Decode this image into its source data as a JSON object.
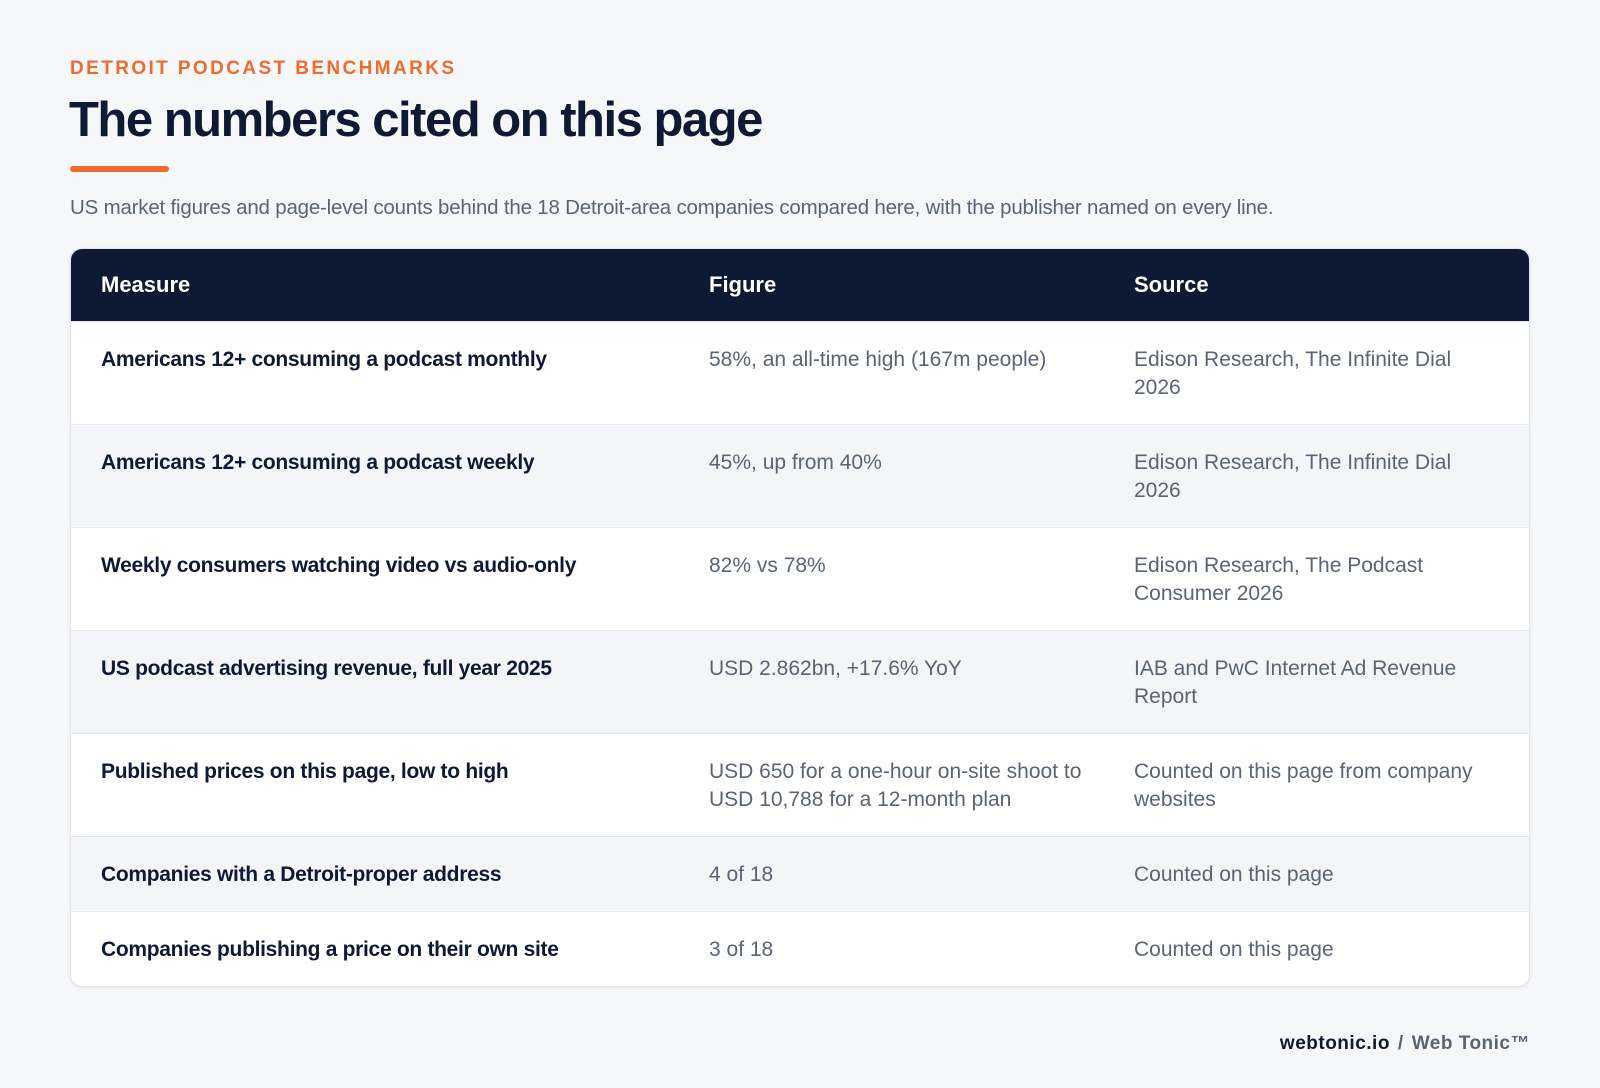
{
  "header": {
    "eyebrow": "DETROIT PODCAST BENCHMARKS",
    "title": "The numbers cited on this page",
    "subtitle": "US market figures and page-level counts behind the 18 Detroit-area companies compared here, with the publisher named on every line."
  },
  "table": {
    "columns": [
      "Measure",
      "Figure",
      "Source"
    ],
    "rows": [
      [
        "Americans 12+ consuming a podcast monthly",
        "58%, an all-time high (167m people)",
        "Edison Research, The Infinite Dial 2026"
      ],
      [
        "Americans 12+ consuming a podcast weekly",
        "45%, up from 40%",
        "Edison Research, The Infinite Dial 2026"
      ],
      [
        "Weekly consumers watching video vs audio-only",
        "82% vs 78%",
        "Edison Research, The Podcast Consumer 2026"
      ],
      [
        "US podcast advertising revenue, full year 2025",
        "USD 2.862bn, +17.6% YoY",
        "IAB and PwC Internet Ad Revenue Report"
      ],
      [
        "Published prices on this page, low to high",
        "USD 650 for a one-hour on-site shoot to USD 10,788 for a 12-month plan",
        "Counted on this page from company websites"
      ],
      [
        "Companies with a Detroit-proper address",
        "4 of 18",
        "Counted on this page"
      ],
      [
        "Companies publishing a price on their own site",
        "3 of 18",
        "Counted on this page"
      ]
    ]
  },
  "footer": {
    "domain": "webtonic.io",
    "separator": "/",
    "brand": "Web Tonic™"
  }
}
